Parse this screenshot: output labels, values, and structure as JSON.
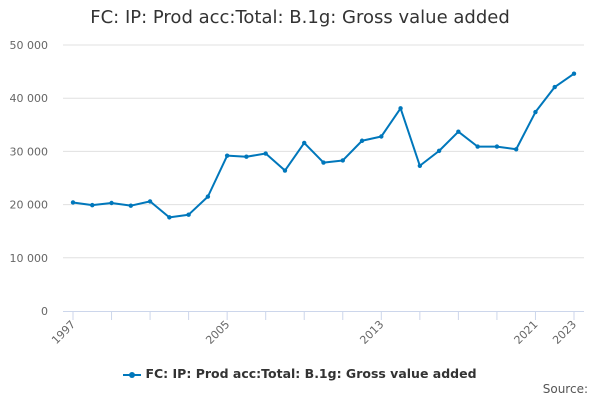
{
  "chart_data": {
    "type": "line",
    "title": "FC: IP: Prod acc:Total: B.1g: Gross value added",
    "xlabel": "",
    "ylabel": "",
    "x": [
      1997,
      1998,
      1999,
      2000,
      2001,
      2002,
      2003,
      2004,
      2005,
      2006,
      2007,
      2008,
      2009,
      2010,
      2011,
      2012,
      2013,
      2014,
      2015,
      2016,
      2017,
      2018,
      2019,
      2020,
      2021,
      2022,
      2023
    ],
    "series": [
      {
        "name": "FC: IP: Prod acc:Total: B.1g: Gross value added",
        "color": "#0077bb",
        "values": [
          20400,
          19900,
          20300,
          19800,
          20600,
          17600,
          18100,
          21500,
          29200,
          29000,
          29600,
          26400,
          31600,
          27900,
          28300,
          32000,
          32800,
          38100,
          27300,
          30100,
          33700,
          30900,
          30900,
          30400,
          37400,
          42100,
          44600
        ]
      }
    ],
    "ylim": [
      0,
      50000
    ],
    "yticks": [
      0,
      10000,
      20000,
      30000,
      40000,
      50000
    ],
    "ytick_labels": [
      "0",
      "10 000",
      "20 000",
      "30 000",
      "40 000",
      "50 000"
    ],
    "xtick_labels": [
      "1997",
      "2005",
      "2013",
      "2021",
      "2023"
    ],
    "grid": true,
    "legend": "bottom-center",
    "source_label": "Source:"
  }
}
